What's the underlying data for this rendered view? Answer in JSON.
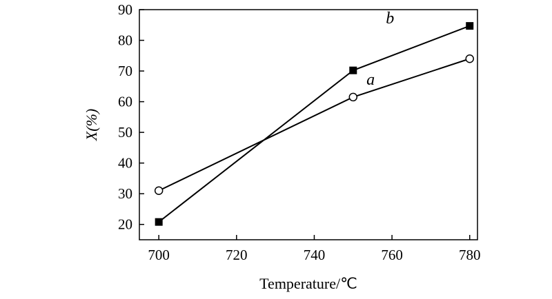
{
  "chart_data": {
    "type": "line",
    "xlabel": "Temperature/℃",
    "ylabel": "X(%)",
    "xlim": [
      695,
      782
    ],
    "ylim": [
      15,
      90
    ],
    "xticks": [
      700,
      720,
      740,
      760,
      780
    ],
    "yticks": [
      20,
      30,
      40,
      50,
      60,
      70,
      80,
      90
    ],
    "grid": false,
    "legend": "none",
    "series": [
      {
        "name": "a",
        "marker": "open-circle",
        "x": [
          700,
          750,
          780
        ],
        "values": [
          31,
          61.5,
          74
        ]
      },
      {
        "name": "b",
        "marker": "filled-square",
        "x": [
          700,
          750,
          780
        ],
        "values": [
          20.8,
          70.2,
          84.7
        ]
      }
    ]
  }
}
